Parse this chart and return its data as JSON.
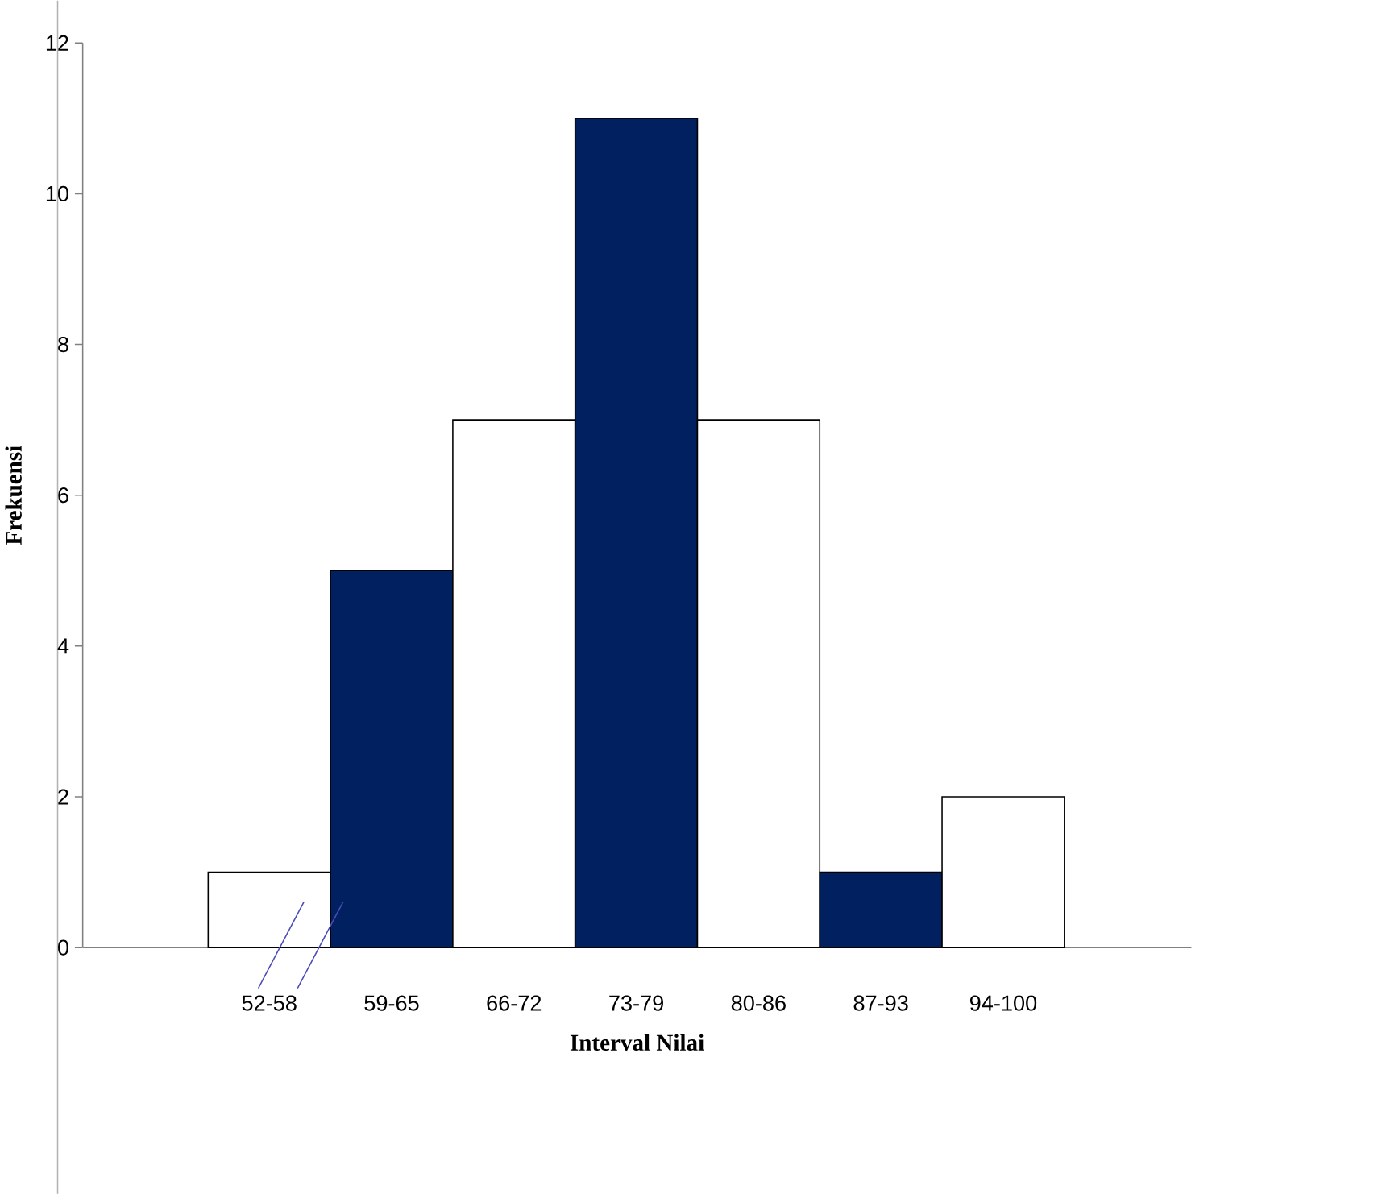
{
  "chart_data": {
    "type": "bar",
    "xlabel": "Interval Nilai",
    "ylabel": "Frekuensi",
    "categories": [
      "52-58",
      "59-65",
      "66-72",
      "73-79",
      "80-86",
      "87-93",
      "94-100"
    ],
    "values": [
      1,
      5,
      7,
      11,
      7,
      1,
      2
    ],
    "colors": [
      "#ffffff",
      "#002060",
      "#ffffff",
      "#002060",
      "#ffffff",
      "#002060",
      "#ffffff"
    ],
    "ylim": [
      0,
      12
    ],
    "yticks": [
      0,
      2,
      4,
      6,
      8,
      10,
      12
    ]
  }
}
